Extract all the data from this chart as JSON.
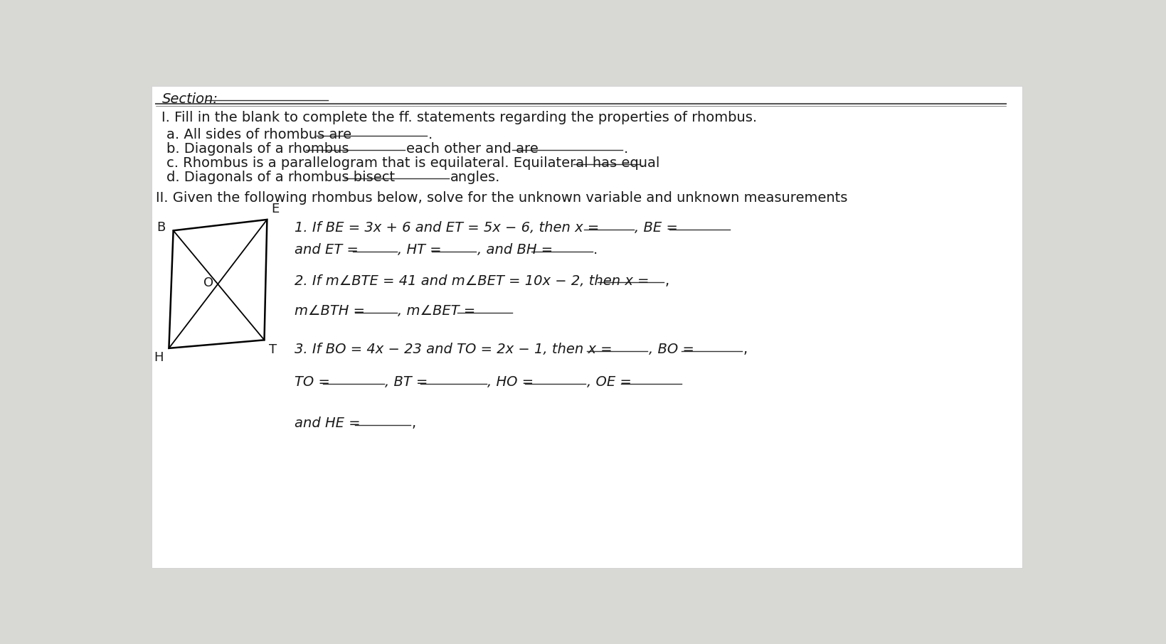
{
  "bg_color": "#e8e8e8",
  "text_color": "#1a1a1a",
  "underline_color": "#333333",
  "font_size_base": 13,
  "font_size_header": 13,
  "section_label": "Section:",
  "part_I_header": "I. Fill in the blank to complete the ff. statements regarding the properties of rhombus.",
  "part_a_text": "a. All sides of rhombus are",
  "part_b_text1": "b. Diagonals of a rhombus",
  "part_b_text2": "each other and are",
  "part_b_text3": ".",
  "part_c_text1": "c. Rhombus is a parallelogram that is equilateral. Equilateral has equal",
  "part_c_text2": ".",
  "part_d_text1": "d. Diagonals of a rhombus bisect",
  "part_d_text2": "angles.",
  "part_II_header": "II. Given the following rhombus below, solve for the unknown variable and unknown measurements",
  "prob1_line1a": "1. If BE = 3x + 6 and ET = 5x − 6, then x =",
  "prob1_comma_BE": ", BE =",
  "prob1_line2a": "and ET =",
  "prob1_line2b": ", HT =",
  "prob1_line2c": ", and BH =",
  "prob1_line2d": ".",
  "prob2_line1": "2. If m∠BTE = 41 and m∠BET = 10x − 2, then x =",
  "prob2_line1b": ",",
  "prob2_line2a": "m∠BTH =",
  "prob2_line2b": ", m∠BET =",
  "prob3_line1a": "3. If BO = 4x − 23 and TO = 2x − 1, then x =",
  "prob3_line1b": ", BO =",
  "prob3_line1c": ",",
  "prob3_line2a": "TO =",
  "prob3_line2b": ", BT =",
  "prob3_line2c": ", HO =",
  "prob3_line2d": ", OE =",
  "prob3_line3": "and HE ="
}
